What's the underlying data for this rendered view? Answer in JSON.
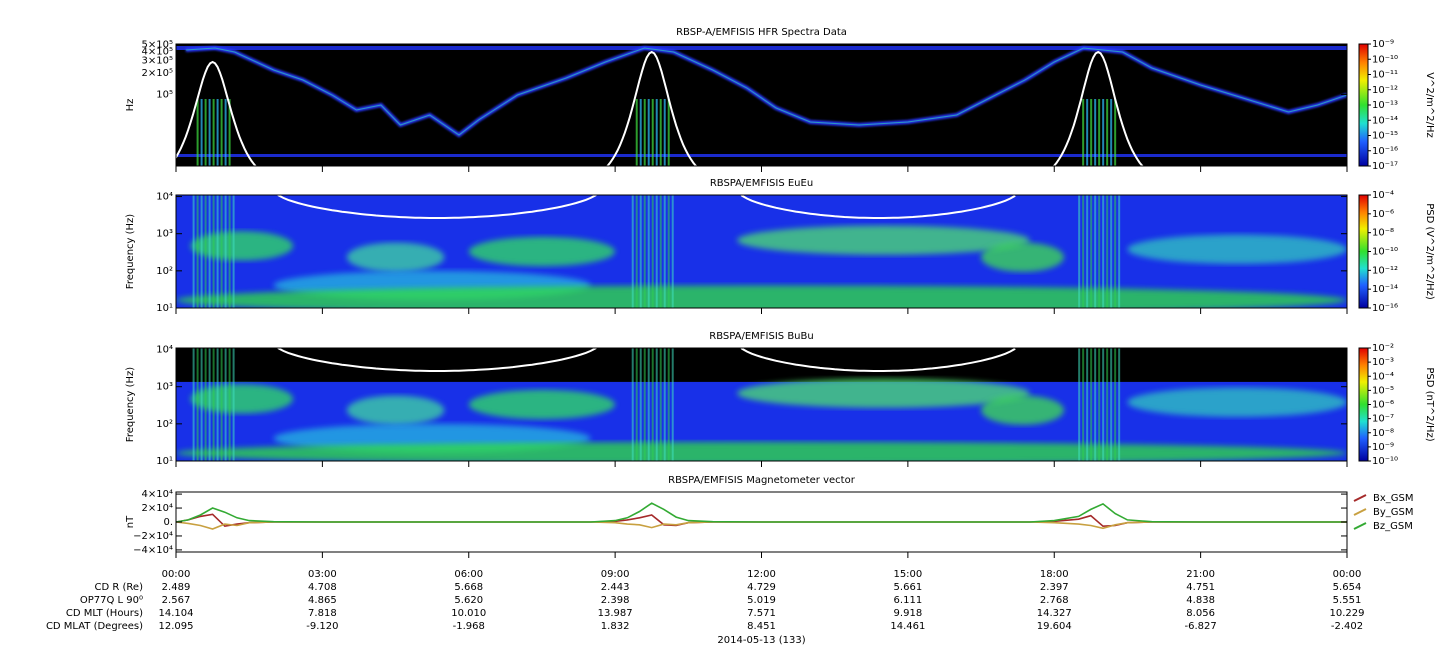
{
  "chart_data": [
    {
      "type": "spectrogram",
      "title": "RBSP-A/EMFISIS  HFR Spectra Data",
      "ylabel": "Hz",
      "log_y": true,
      "ylim": [
        10000,
        510000
      ],
      "yticks": [
        {
          "value": 500000,
          "label": "5×10⁵"
        },
        {
          "value": 400000,
          "label": "4×10⁵"
        },
        {
          "value": 300000,
          "label": "3×10⁵"
        },
        {
          "value": 200000,
          "label": "2×10⁵"
        },
        {
          "value": 100000,
          "label": "10⁵"
        }
      ],
      "colorbar": {
        "label": "V^2/m^2/Hz",
        "lim": [
          1e-17,
          1e-09
        ],
        "ticks": [
          {
            "value": 1e-09,
            "label": "10⁻⁹"
          },
          {
            "value": 1e-10,
            "label": "10⁻¹⁰"
          },
          {
            "value": 1e-11,
            "label": "10⁻¹¹"
          },
          {
            "value": 1e-12,
            "label": "10⁻¹²"
          },
          {
            "value": 1e-13,
            "label": "10⁻¹³"
          },
          {
            "value": 1e-14,
            "label": "10⁻¹⁴"
          },
          {
            "value": 1e-15,
            "label": "10⁻¹⁵"
          },
          {
            "value": 1e-16,
            "label": "10⁻¹⁶"
          },
          {
            "value": 1e-17,
            "label": "10⁻¹⁷"
          }
        ]
      }
    },
    {
      "type": "spectrogram",
      "title": "RBSPA/EMFISIS  EuEu",
      "ylabel": "Frequency (Hz)",
      "log_y": true,
      "ylim": [
        10,
        11000
      ],
      "yticks": [
        {
          "value": 10,
          "label": "10¹"
        },
        {
          "value": 100,
          "label": "10²"
        },
        {
          "value": 1000,
          "label": "10³"
        },
        {
          "value": 10000,
          "label": "10⁴"
        }
      ],
      "colorbar": {
        "label": "PSD (V^2/m^2/Hz)",
        "lim": [
          1e-16,
          0.0001
        ],
        "ticks": [
          {
            "value": 0.0001,
            "label": "10⁻⁴"
          },
          {
            "value": 1e-06,
            "label": "10⁻⁶"
          },
          {
            "value": 1e-08,
            "label": "10⁻⁸"
          },
          {
            "value": 1e-10,
            "label": "10⁻¹⁰"
          },
          {
            "value": 1e-12,
            "label": "10⁻¹²"
          },
          {
            "value": 1e-14,
            "label": "10⁻¹⁴"
          },
          {
            "value": 1e-16,
            "label": "10⁻¹⁶"
          }
        ]
      }
    },
    {
      "type": "spectrogram",
      "title": "RBSPA/EMFISIS  BuBu",
      "ylabel": "Frequency (Hz)",
      "log_y": true,
      "ylim": [
        10,
        11000
      ],
      "yticks": [
        {
          "value": 10,
          "label": "10¹"
        },
        {
          "value": 100,
          "label": "10²"
        },
        {
          "value": 1000,
          "label": "10³"
        },
        {
          "value": 10000,
          "label": "10⁴"
        }
      ],
      "colorbar": {
        "label": "PSD (nT^2/Hz)",
        "lim": [
          1e-10,
          0.01
        ],
        "ticks": [
          {
            "value": 0.01,
            "label": "10⁻²"
          },
          {
            "value": 0.001,
            "label": "10⁻³"
          },
          {
            "value": 0.0001,
            "label": "10⁻⁴"
          },
          {
            "value": 1e-05,
            "label": "10⁻⁵"
          },
          {
            "value": 1e-06,
            "label": "10⁻⁶"
          },
          {
            "value": 1e-07,
            "label": "10⁻⁷"
          },
          {
            "value": 1e-08,
            "label": "10⁻⁸"
          },
          {
            "value": 1e-09,
            "label": "10⁻⁹"
          },
          {
            "value": 1e-10,
            "label": "10⁻¹⁰"
          }
        ]
      }
    },
    {
      "type": "line",
      "title": "RBSPA/EMFISIS  Magnetometer vector",
      "ylabel": "nT",
      "ylim": [
        -43000,
        43000
      ],
      "yticks": [
        {
          "value": 40000,
          "label": "4×10⁴"
        },
        {
          "value": 20000,
          "label": "2×10⁴"
        },
        {
          "value": 0,
          "label": "0."
        },
        {
          "value": -20000,
          "label": "−2×10⁴"
        },
        {
          "value": -40000,
          "label": "−4×10⁴"
        }
      ],
      "xlim": [
        0,
        24
      ],
      "xticks": [
        {
          "value": 0,
          "label": "00:00"
        },
        {
          "value": 3,
          "label": "03:00"
        },
        {
          "value": 6,
          "label": "06:00"
        },
        {
          "value": 9,
          "label": "09:00"
        },
        {
          "value": 12,
          "label": "12:00"
        },
        {
          "value": 15,
          "label": "15:00"
        },
        {
          "value": 18,
          "label": "18:00"
        },
        {
          "value": 21,
          "label": "21:00"
        },
        {
          "value": 24,
          "label": "00:00"
        }
      ],
      "x": [
        0,
        0.25,
        0.5,
        0.75,
        1,
        1.25,
        1.5,
        2,
        3,
        6,
        8.5,
        9,
        9.25,
        9.5,
        9.75,
        10,
        10.25,
        10.5,
        11,
        12,
        15,
        17.5,
        18,
        18.5,
        18.75,
        19,
        19.25,
        19.5,
        20,
        21,
        24
      ],
      "series": [
        {
          "name": "Bx_GSM",
          "color": "#a52a2a",
          "values": [
            0,
            3000,
            8000,
            11000,
            -6000,
            -3000,
            -1000,
            0,
            0,
            0,
            0,
            1000,
            3000,
            6000,
            10000,
            -4000,
            -5000,
            -1000,
            0,
            0,
            0,
            0,
            1000,
            4000,
            9000,
            -6000,
            -5000,
            -1000,
            0,
            0,
            0
          ]
        },
        {
          "name": "By_GSM",
          "color": "#c8a040",
          "values": [
            0,
            -2000,
            -5000,
            -10000,
            -3000,
            -5000,
            -1000,
            0,
            0,
            0,
            0,
            -1000,
            -3000,
            -4000,
            -8000,
            -3000,
            -4000,
            -1000,
            0,
            0,
            0,
            0,
            -1000,
            -3000,
            -5000,
            -9000,
            -4000,
            -1000,
            0,
            0,
            0
          ]
        },
        {
          "name": "Bz_GSM",
          "color": "#33aa33",
          "values": [
            0,
            3000,
            10000,
            20000,
            14000,
            6000,
            2000,
            500,
            0,
            0,
            0,
            2000,
            6000,
            15000,
            27000,
            18000,
            7000,
            2000,
            500,
            0,
            0,
            0,
            2000,
            8000,
            18000,
            26000,
            12000,
            3000,
            500,
            0,
            0
          ]
        }
      ]
    }
  ],
  "ephemeris": {
    "rows": [
      {
        "label": "CD R (Re)",
        "values": [
          "2.489",
          "4.708",
          "5.668",
          "2.443",
          "4.729",
          "5.661",
          "2.397",
          "4.751",
          "5.654"
        ]
      },
      {
        "label": "OP77Q L 90⁰",
        "values": [
          "2.567",
          "4.865",
          "5.620",
          "2.398",
          "5.019",
          "6.111",
          "2.768",
          "4.838",
          "5.551"
        ]
      },
      {
        "label": "CD MLT (Hours)",
        "values": [
          "14.104",
          "7.818",
          "10.010",
          "13.987",
          "7.571",
          "9.918",
          "14.327",
          "8.056",
          "10.229"
        ]
      },
      {
        "label": "CD MLAT (Degrees)",
        "values": [
          "12.095",
          "-9.120",
          "-1.968",
          "1.832",
          "8.451",
          "14.461",
          "19.604",
          "-6.827",
          "-2.402"
        ]
      }
    ]
  },
  "date_label": "2014-05-13 (133)"
}
